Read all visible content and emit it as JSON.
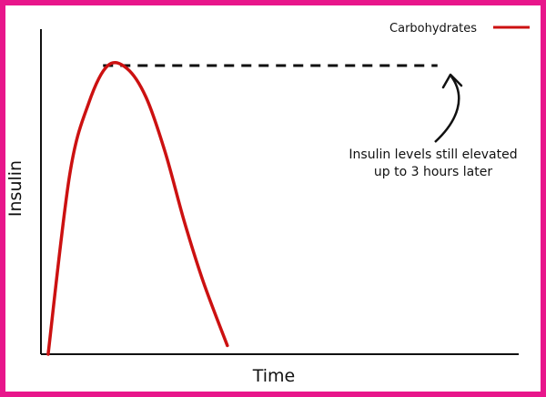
{
  "chart_data": {
    "type": "line",
    "title": "",
    "xlabel": "Time",
    "ylabel": "Insulin",
    "xlim": [
      0,
      10
    ],
    "ylim": [
      0,
      10
    ],
    "grid": false,
    "legend": {
      "placement": "top-right"
    },
    "series": [
      {
        "name": "Carbohydrates",
        "color": "#cc1111",
        "x": [
          0.15,
          0.6,
          1.0,
          1.4,
          1.8,
          2.2,
          2.6,
          3.0,
          3.4,
          3.9
        ],
        "y": [
          0.0,
          6.2,
          8.7,
          10.0,
          9.9,
          8.9,
          7.0,
          4.6,
          2.5,
          0.3
        ]
      }
    ],
    "reference_line": {
      "color": "#111111",
      "style": "dashed",
      "y": 10.0,
      "x_start": 1.3,
      "x_end": 8.3
    },
    "annotation": {
      "lines": [
        "Insulin levels still elevated",
        "up to 3 hours later"
      ],
      "arrow_color": "#111111"
    }
  }
}
